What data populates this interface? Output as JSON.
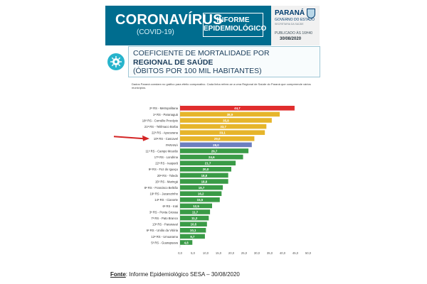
{
  "header": {
    "title": "CORONAVÍRUS",
    "subtitle": "(COVID-19)",
    "informe": [
      "INFORME",
      "EPIDEMIOLÓGICO"
    ],
    "gov_name": "PARANÁ",
    "gov_sub": "GOVERNO DO ESTADO",
    "gov_dept": "SECRETARIA DA SAÚDE",
    "published": "PUBLICADO ÀS 16H40",
    "date": "30/08/2020"
  },
  "section": {
    "line1": "COEFICIENTE DE MORTALIDADE POR",
    "line2": "REGIONAL DE SAÚDE",
    "line3": "(ÓBITOS POR 100 MIL HABITANTES)"
  },
  "note": "Dados Paraná constam no gráfico para efeito comparativo. Cada linha refere-se a uma Regional de Saúde do Paraná que compreende vários municípios.",
  "source": {
    "label": "Fonte",
    "text": ": Informe Epidemiológico SESA – 30/08/2020"
  },
  "colors": {
    "red": "#e02d2d",
    "yellow": "#e6b52b",
    "blue": "#6c7fbf",
    "green": "#3a9b47",
    "arrow": "#d42525"
  },
  "chart_data": {
    "type": "bar",
    "orientation": "horizontal",
    "xlim": [
      0,
      50
    ],
    "xticks": [
      "0,0",
      "5,0",
      "10,0",
      "15,0",
      "20,0",
      "25,0",
      "30,0",
      "35,0",
      "40,0",
      "45,0",
      "50,0"
    ],
    "grid": false,
    "highlight_category": "10ª RS - Cascavel",
    "categories": [
      "2ª RS - Metropolitana",
      "1ª RS - Paranaguá",
      "18ª RS - Cornélio Procópio",
      "21ª RS - Telêmaco Borba",
      "22ª RS - Apucarana",
      "10ª RS - Cascavel",
      "PARANÁ",
      "11ª RS - Campo Mourão",
      "17ª RS - Londrina",
      "22ª RS - Ivaiporã",
      "9ª RS - Foz do Iguaçu",
      "20ª RS - Toledo",
      "15ª RS - Maringá",
      "8ª RS - Francisco Beltrão",
      "19ª RS - Jacarezinho",
      "14ª RS - Cianorte",
      "6ª RS - Irati",
      "3ª RS - Ponta Grossa",
      "7ª RS - Pato Branco",
      "13ª RS - Paranavaí",
      "6ª RS - União da Vitória",
      "12ª RS - Umuarama",
      "5ª RS - Guarapuava"
    ],
    "values": [
      44.7,
      38.9,
      35.8,
      33.7,
      33.1,
      29.0,
      28.0,
      26.7,
      24.6,
      21.7,
      20.0,
      18.8,
      18.8,
      16.7,
      16.2,
      15.5,
      12.5,
      11.7,
      11.2,
      10.5,
      10.1,
      9.7,
      4.8
    ],
    "value_labels": [
      "44,7",
      "38,9",
      "35,8",
      "33,7",
      "33,1",
      "29,0",
      "28,0",
      "26,7",
      "24,6",
      "21,7",
      "20,0",
      "18,8",
      "18,8",
      "16,7",
      "16,2",
      "15,5",
      "12,5",
      "11,7",
      "11,2",
      "10,5",
      "10,1",
      "9,7",
      "4,8"
    ],
    "bar_colors": [
      "red",
      "yellow",
      "yellow",
      "yellow",
      "yellow",
      "yellow",
      "blue",
      "green",
      "green",
      "green",
      "green",
      "green",
      "green",
      "green",
      "green",
      "green",
      "green",
      "green",
      "green",
      "green",
      "green",
      "green",
      "green"
    ]
  }
}
